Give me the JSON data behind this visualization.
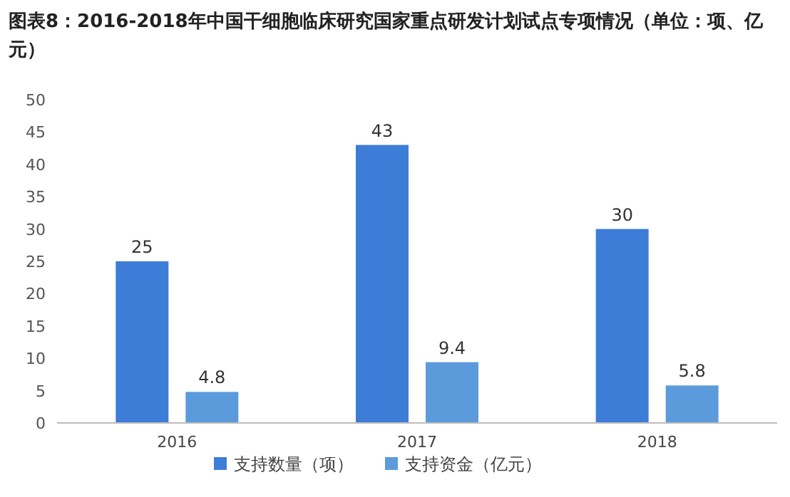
{
  "chart_data": {
    "type": "bar",
    "title": "图表8：2016-2018年中国干细胞临床研究国家重点研发计划试点专项情况（单位：项、亿元）",
    "categories": [
      "2016",
      "2017",
      "2018"
    ],
    "series": [
      {
        "name": "支持数量（项）",
        "color": "#3d7dd8",
        "values": [
          25,
          43,
          30
        ]
      },
      {
        "name": "支持资金（亿元）",
        "color": "#5b9bdc",
        "values": [
          4.8,
          9.4,
          5.8
        ]
      }
    ],
    "ylim": [
      0,
      50
    ],
    "yticks": [
      0,
      5,
      10,
      15,
      20,
      25,
      30,
      35,
      40,
      45,
      50
    ],
    "grid": false,
    "legend": "bottom",
    "data_labels": true
  }
}
